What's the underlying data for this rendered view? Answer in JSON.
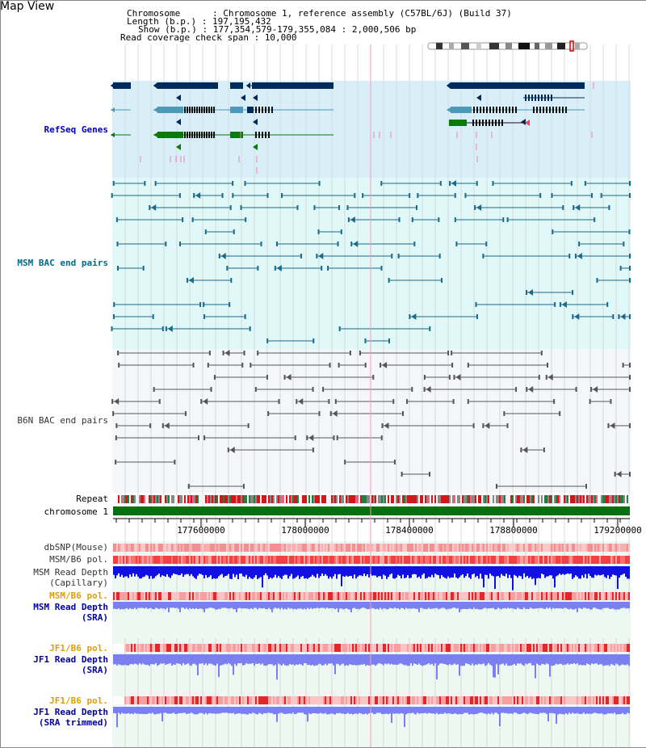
{
  "title": "Map View",
  "header": {
    "chromosome_label": "Chromosome      : Chromosome 1, reference assembly (C57BL/6J) (Build 37)",
    "length_label": "Length (b.p.) : 197,195,432",
    "show_label": "Show (b.p.) : 177,354,579-179,355,084 : 2,000,506 bp",
    "coverage_label": "Read coverage check span : 10,000"
  },
  "tracks": {
    "refseq": "RefSeq Genes",
    "msm_bac": "MSM BAC end pairs",
    "b6n_bac": "B6N BAC end pairs",
    "repeat": "Repeat",
    "chromosome": "chromosome 1",
    "dbsnp": "dbSNP(Mouse)",
    "msm_b6_pol": "MSM/B6 pol.",
    "msm_read_depth_cap_1": "MSM Read Depth",
    "msm_read_depth_cap_2": "(Capillary)",
    "msm_b6_pol_2": "MSM/B6 pol.",
    "msm_read_depth_sra_1": "MSM Read Depth",
    "msm_read_depth_sra_2": "(SRA)",
    "jf1_b6_pol": "JF1/B6 pol.",
    "jf1_read_depth_sra_1": "JF1 Read Depth",
    "jf1_read_depth_sra_2": "(SRA)",
    "jf1_b6_pol_2": "JF1/B6 pol.",
    "jf1_read_depth_trim_1": "JF1 Read Depth",
    "jf1_read_depth_trim_2": "(SRA trimmed)"
  },
  "axis_ticks": [
    "177600000",
    "178000000",
    "178400000",
    "178800000",
    "179200000"
  ],
  "colors": {
    "refseq_bg": "#d8effa",
    "msm_bg": "#e0f8f8",
    "b6n_bg": "#f4f6fa",
    "navy_gene": "#002a5a",
    "teal_gene": "#4a9ab8",
    "green_gene": "#0a7a0a",
    "chromosome_bar": "#087010",
    "msm_line": "#1a6a8a",
    "b6n_line": "#555555",
    "depth_blue": "#1010e0",
    "depth_light": "#7a80f0"
  }
}
